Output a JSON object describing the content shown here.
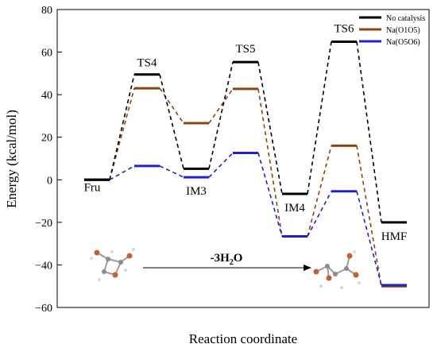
{
  "chart_data": {
    "type": "line",
    "title": "",
    "xlabel": "Reaction coordinate",
    "ylabel": "Energy (kcal/mol)",
    "ylim": [
      -60,
      80
    ],
    "y_ticks": [
      80,
      60,
      40,
      20,
      0,
      -20,
      -40,
      -60
    ],
    "legend_position": "top-right",
    "x_stages": [
      0,
      1,
      2,
      3,
      4,
      5,
      6,
      7
    ],
    "species_labels": [
      {
        "text": "Fru",
        "stage": 0
      },
      {
        "text": "TS4",
        "stage": 1
      },
      {
        "text": "IM3",
        "stage": 2
      },
      {
        "text": "TS5",
        "stage": 3
      },
      {
        "text": "IM4",
        "stage": 4
      },
      {
        "text": "TS6",
        "stage": 5
      },
      {
        "text": "HMF",
        "stage": 7
      }
    ],
    "series": [
      {
        "name": "No catalysis",
        "color": "#000000",
        "values": [
          0,
          49.5,
          5.2,
          55.3,
          -6.6,
          64.9,
          -20.0,
          null
        ]
      },
      {
        "name": "Na(O1O5)",
        "color": "#8b4513",
        "values": [
          0,
          43.0,
          26.6,
          42.7,
          -26.6,
          16.0,
          -50.0,
          null
        ]
      },
      {
        "name": "Na(O5O6)",
        "color": "#2020d0",
        "values": [
          0,
          6.5,
          1.2,
          12.6,
          -26.6,
          -5.4,
          -49.5,
          null
        ]
      }
    ],
    "annotation": {
      "text": "-3H",
      "sub": "2",
      "tail": "O"
    }
  }
}
